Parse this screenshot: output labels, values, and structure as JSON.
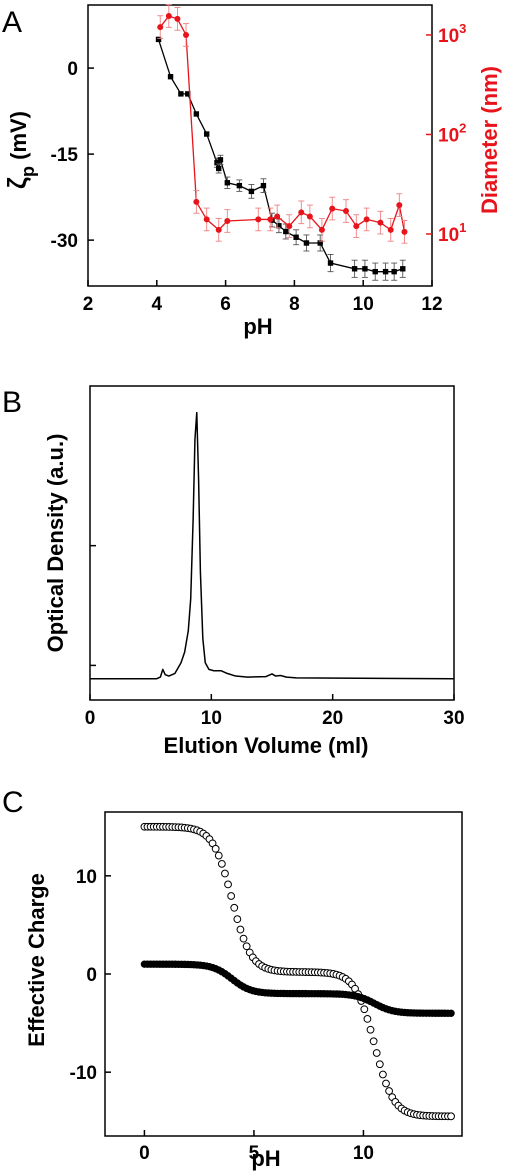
{
  "chart_data": [
    {
      "panel": "A",
      "type": "scatter",
      "xlabel": "pH",
      "xlim": [
        2,
        12
      ],
      "xticks": [
        "2",
        "4",
        "6",
        "8",
        "10",
        "12"
      ],
      "ylabel": "ζp (mV)",
      "ylabel_main": "ζ",
      "ylabel_sub": "p",
      "ylabel_rest": " (mV)",
      "ylim": [
        -38,
        11
      ],
      "yticks": [
        "0",
        "-15",
        "-30"
      ],
      "y2label": "Diameter (nm)",
      "y2_scale": "log",
      "y2lim": [
        3,
        2000
      ],
      "y2ticks": [
        {
          "base": "10",
          "exp": "1"
        },
        {
          "base": "10",
          "exp": "2"
        },
        {
          "base": "10",
          "exp": "3"
        }
      ],
      "series": [
        {
          "color": "#000000",
          "marker": "square",
          "axis": "left",
          "x": [
            4.05,
            4.4,
            4.7,
            4.9,
            5.15,
            5.45,
            5.75,
            5.8,
            5.85,
            6.05,
            6.4,
            6.75,
            7.1,
            7.35,
            7.55,
            7.75,
            8.05,
            8.35,
            8.75,
            9.05,
            9.75,
            10.05,
            10.35,
            10.65,
            10.9,
            11.15
          ],
          "y": [
            5,
            -1.5,
            -4.5,
            -4.5,
            -8,
            -11.5,
            -16.5,
            -17.5,
            -16,
            -20,
            -20.5,
            -21.5,
            -20.5,
            -26.5,
            -27.5,
            -28.5,
            -29.5,
            -30.5,
            -30.5,
            -34,
            -35,
            -35,
            -35.5,
            -35.5,
            -35.5,
            -35
          ],
          "err": [
            0,
            0,
            0,
            0,
            0,
            0,
            0.8,
            0.8,
            0.8,
            1,
            1,
            1.2,
            1.2,
            1.2,
            1.2,
            1.3,
            1.3,
            1.4,
            1.4,
            1.5,
            1.5,
            1.5,
            1.5,
            1.5,
            1.5,
            1.5
          ]
        },
        {
          "color": "#e8141b",
          "marker": "circle",
          "axis": "right",
          "x": [
            4.1,
            4.35,
            4.6,
            4.85,
            5.15,
            5.45,
            5.8,
            6.05,
            6.95,
            7.3,
            7.5,
            7.85,
            8.2,
            8.45,
            8.8,
            9.1,
            9.5,
            9.8,
            10.1,
            10.5,
            10.8,
            11.05,
            11.2
          ],
          "y": [
            1200,
            1550,
            1450,
            1000,
            21,
            14,
            11,
            13.5,
            14,
            14,
            15,
            12,
            16.5,
            15,
            11,
            18,
            17,
            12,
            14,
            13,
            11,
            19.5,
            10.5
          ],
          "err_factor": 1.3
        }
      ]
    },
    {
      "panel": "B",
      "type": "line",
      "xlabel": "Elution Volume (ml)",
      "xlim": [
        0,
        30
      ],
      "xticks": [
        "0",
        "10",
        "20",
        "30"
      ],
      "ylabel": "Optical Density (a.u.)",
      "ylim": [
        -0.08,
        1.1
      ],
      "series": [
        {
          "color": "#000000",
          "x": [
            0,
            5.5,
            5.8,
            6.0,
            6.2,
            6.5,
            7.0,
            7.5,
            7.8,
            8.1,
            8.3,
            8.5,
            8.65,
            8.8,
            8.95,
            9.1,
            9.3,
            9.5,
            9.8,
            10.2,
            10.8,
            11.3,
            12,
            13,
            14.5,
            15.0,
            15.3,
            15.7,
            16.2,
            17,
            30
          ],
          "y": [
            0,
            0,
            0.006,
            0.035,
            0.015,
            0.01,
            0.02,
            0.06,
            0.1,
            0.18,
            0.3,
            0.6,
            0.9,
            1.0,
            0.75,
            0.4,
            0.15,
            0.06,
            0.035,
            0.03,
            0.03,
            0.02,
            0.01,
            0.006,
            0.008,
            0.018,
            0.01,
            0.012,
            0.006,
            0.003,
            0
          ]
        }
      ]
    },
    {
      "panel": "C",
      "type": "scatter",
      "xlabel": "pH",
      "xlim": [
        -1.8,
        14.5
      ],
      "xticks": [
        "0",
        "5",
        "10"
      ],
      "ylabel": "Effective Charge",
      "ylim": [
        -16.5,
        16.5
      ],
      "yticks": [
        "10",
        "0",
        "-10"
      ],
      "x_range": [
        0,
        14
      ],
      "n_points": 100,
      "series": [
        {
          "name_hidden": true,
          "marker": "open-circle",
          "plateau_high": 15,
          "plateau_low": -14.5,
          "pKa": [
            4.0,
            10.5
          ],
          "steps": [
            14.8,
            14.7
          ]
        },
        {
          "name_hidden": true,
          "marker": "filled-circle",
          "plateau_high": 1,
          "plateau_low": -4,
          "pKa": [
            4.0,
            10.5
          ],
          "steps": [
            3,
            2
          ]
        }
      ]
    }
  ]
}
